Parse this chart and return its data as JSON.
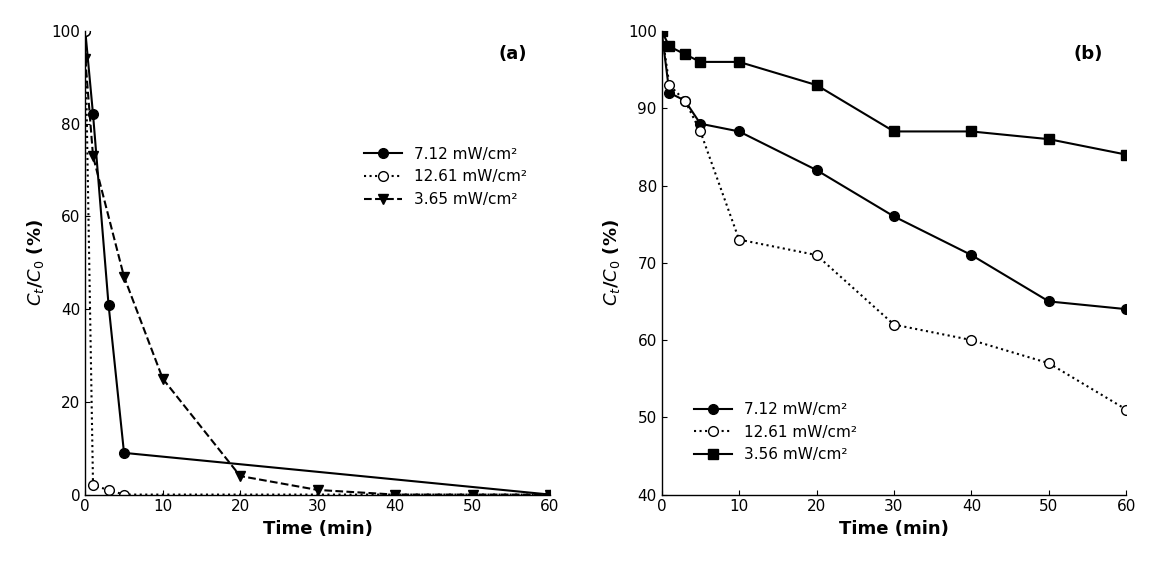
{
  "panel_a": {
    "title": "(a)",
    "xlabel": "Time (min)",
    "ylabel": "$C_t$/$C_0$ (%)",
    "xlim": [
      0,
      60
    ],
    "ylim": [
      0,
      100
    ],
    "xticks": [
      0,
      10,
      20,
      30,
      40,
      50,
      60
    ],
    "yticks": [
      0,
      20,
      40,
      60,
      80,
      100
    ],
    "series": [
      {
        "label": "7.12 mW/cm²",
        "x": [
          0,
          1,
          3,
          5,
          60
        ],
        "y": [
          100,
          82,
          41,
          9,
          0
        ],
        "linestyle": "-",
        "marker": "o",
        "markerfacecolor": "black",
        "color": "black"
      },
      {
        "label": "12.61 mW/cm²",
        "x": [
          0,
          1,
          3,
          5,
          60
        ],
        "y": [
          100,
          2,
          1,
          0,
          0
        ],
        "linestyle": ":",
        "marker": "o",
        "markerfacecolor": "white",
        "color": "black"
      },
      {
        "label": "3.65 mW/cm²",
        "x": [
          0,
          1,
          5,
          10,
          20,
          30,
          40,
          50,
          60
        ],
        "y": [
          94,
          73,
          47,
          25,
          4,
          1,
          0,
          0,
          0
        ],
        "linestyle": "--",
        "marker": "v",
        "markerfacecolor": "black",
        "color": "black"
      }
    ]
  },
  "panel_b": {
    "title": "(b)",
    "xlabel": "Time (min)",
    "ylabel": "$C_t$/$C_0$ (%)",
    "xlim": [
      0,
      60
    ],
    "ylim": [
      40,
      100
    ],
    "xticks": [
      0,
      10,
      20,
      30,
      40,
      50,
      60
    ],
    "yticks": [
      40,
      50,
      60,
      70,
      80,
      90,
      100
    ],
    "series": [
      {
        "label": "7.12 mW/cm²",
        "x": [
          0,
          1,
          3,
          5,
          10,
          20,
          30,
          40,
          50,
          60
        ],
        "y": [
          100,
          92,
          91,
          88,
          87,
          82,
          76,
          71,
          65,
          64
        ],
        "linestyle": "-",
        "marker": "o",
        "markerfacecolor": "black",
        "color": "black"
      },
      {
        "label": "12.61 mW/cm²",
        "x": [
          0,
          1,
          3,
          5,
          10,
          20,
          30,
          40,
          50,
          60
        ],
        "y": [
          100,
          93,
          91,
          87,
          73,
          71,
          62,
          60,
          57,
          51
        ],
        "linestyle": ":",
        "marker": "o",
        "markerfacecolor": "white",
        "color": "black"
      },
      {
        "label": "3.56 mW/cm²",
        "x": [
          0,
          1,
          3,
          5,
          10,
          20,
          30,
          40,
          50,
          60
        ],
        "y": [
          100,
          98,
          97,
          96,
          96,
          93,
          87,
          87,
          86,
          84
        ],
        "linestyle": "-",
        "marker": "s",
        "markerfacecolor": "black",
        "color": "black"
      }
    ]
  }
}
